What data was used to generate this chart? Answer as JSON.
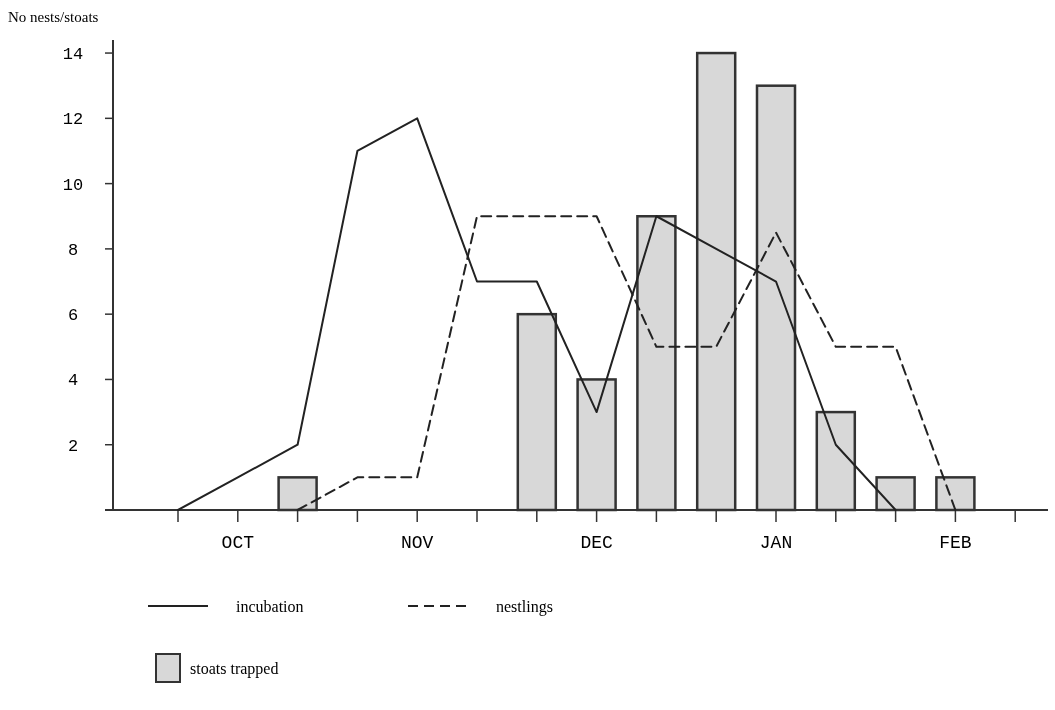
{
  "chart_data": {
    "type": "line",
    "ylabel": "No nests/stoats",
    "categories": [
      null,
      "OCT",
      null,
      null,
      "NOV",
      null,
      null,
      "DEC",
      null,
      null,
      "JAN",
      null,
      null,
      "FEB",
      null
    ],
    "ylim": [
      0,
      14.4
    ],
    "yticks": [
      2,
      4,
      6,
      8,
      10,
      12,
      14
    ],
    "grid": false,
    "legend": "bottom",
    "series": [
      {
        "name": "incubation",
        "line_style": "solid",
        "color": "#222222",
        "values": [
          0,
          1,
          2,
          11,
          12,
          7,
          7,
          3,
          9,
          8,
          7,
          2,
          0,
          null,
          null
        ]
      },
      {
        "name": "nestlings",
        "line_style": "dashed",
        "color": "#222222",
        "values": [
          null,
          null,
          0,
          1,
          1,
          9,
          9,
          9,
          5,
          5,
          8.5,
          5,
          5,
          0,
          null
        ]
      },
      {
        "name": "stoats trapped",
        "type": "bar",
        "color": "#d8d8d8",
        "values": [
          null,
          null,
          1,
          null,
          null,
          null,
          6,
          4,
          9,
          14,
          13,
          3,
          1,
          1,
          null
        ]
      }
    ]
  }
}
